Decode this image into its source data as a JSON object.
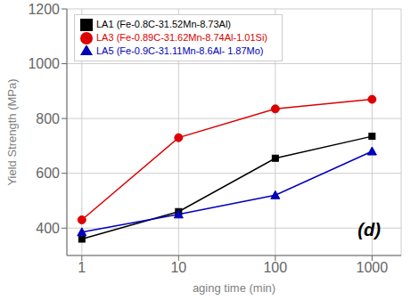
{
  "chart_data": {
    "type": "line",
    "x": [
      1,
      10,
      100,
      1000
    ],
    "series": [
      {
        "name": "LA1 (Fe-0.8C-31.52Mn-8.73Al)",
        "color": "#000000",
        "marker": "square",
        "values": [
          360,
          460,
          655,
          735
        ]
      },
      {
        "name": "LA3 (Fe-0.89C-31.62Mn-8.74Al-1.01Si)",
        "color": "#dd0000",
        "marker": "circle",
        "values": [
          430,
          730,
          835,
          870
        ]
      },
      {
        "name": "LA5 (Fe-0.9C-31.11Mn-8.6Al- 1.87Mo)",
        "color": "#0000bb",
        "marker": "triangle",
        "values": [
          385,
          450,
          520,
          680
        ]
      }
    ],
    "xlabel": "aging time (min)",
    "ylabel": "Yield Strength (MPa)",
    "xlim": [
      0.7,
      2000
    ],
    "ylim": [
      300,
      1200
    ],
    "xticks": [
      1,
      10,
      100,
      1000
    ],
    "yticks": [
      400,
      600,
      800,
      1000,
      1200
    ],
    "log": "x",
    "grid": true,
    "legend": "upper left",
    "annotation": "(d)"
  }
}
